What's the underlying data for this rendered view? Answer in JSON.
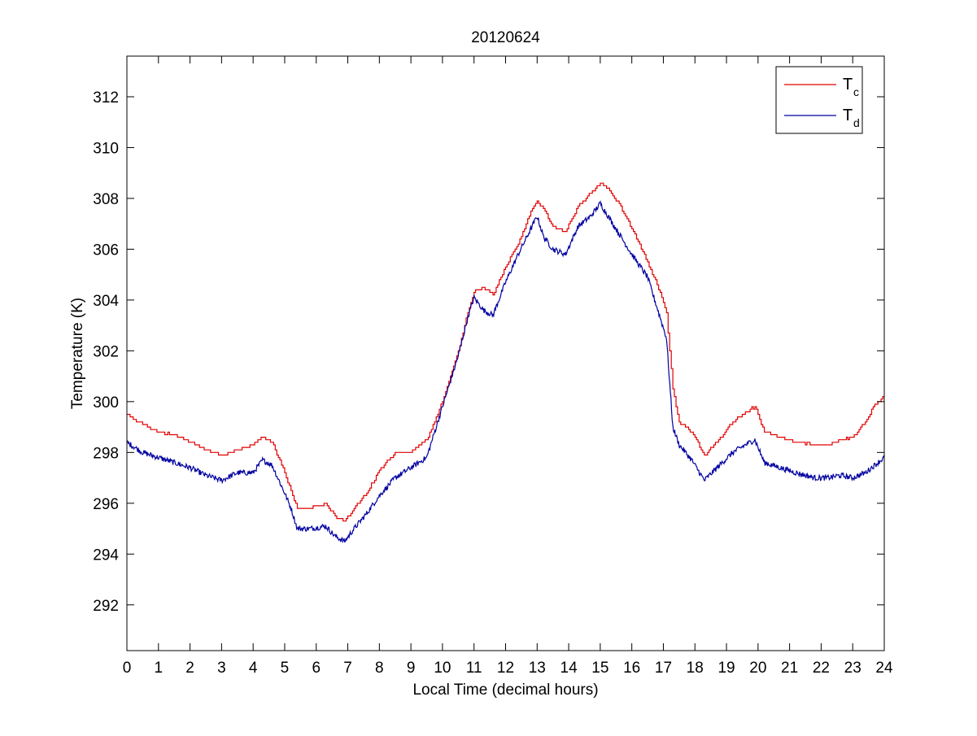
{
  "chart_data": {
    "type": "line",
    "title": "20120624",
    "xlabel": "Local Time (decimal hours)",
    "ylabel": "Temperature (K)",
    "xlim": [
      0,
      24
    ],
    "ylim": [
      290.2,
      313.6
    ],
    "x_ticks": [
      0,
      1,
      2,
      3,
      4,
      5,
      6,
      7,
      8,
      9,
      10,
      11,
      12,
      13,
      14,
      15,
      16,
      17,
      18,
      19,
      20,
      21,
      22,
      23,
      24
    ],
    "y_ticks": [
      292,
      294,
      296,
      298,
      300,
      302,
      304,
      306,
      308,
      310,
      312
    ],
    "grid": false,
    "legend_position": "top-right",
    "series": [
      {
        "name": "T",
        "subscript": "c",
        "color": "#e00000",
        "points": [
          [
            0,
            299.5
          ],
          [
            0.5,
            299.1
          ],
          [
            1,
            298.8
          ],
          [
            1.5,
            298.7
          ],
          [
            2,
            298.4
          ],
          [
            2.5,
            298.1
          ],
          [
            3,
            297.9
          ],
          [
            3.5,
            298.1
          ],
          [
            4,
            298.3
          ],
          [
            4.3,
            298.6
          ],
          [
            4.6,
            298.4
          ],
          [
            5.0,
            297.2
          ],
          [
            5.2,
            296.5
          ],
          [
            5.4,
            295.8
          ],
          [
            5.8,
            295.8
          ],
          [
            6.3,
            296.0
          ],
          [
            6.6,
            295.5
          ],
          [
            6.9,
            295.3
          ],
          [
            7.2,
            295.8
          ],
          [
            7.6,
            296.4
          ],
          [
            8,
            297.3
          ],
          [
            8.5,
            298.0
          ],
          [
            9,
            298.0
          ],
          [
            9.5,
            298.5
          ],
          [
            10,
            300.0
          ],
          [
            10.5,
            302.0
          ],
          [
            10.8,
            303.5
          ],
          [
            11,
            304.3
          ],
          [
            11.3,
            304.5
          ],
          [
            11.6,
            304.2
          ],
          [
            12,
            305.3
          ],
          [
            12.4,
            306.2
          ],
          [
            12.8,
            307.5
          ],
          [
            13.0,
            307.9
          ],
          [
            13.2,
            307.6
          ],
          [
            13.5,
            306.9
          ],
          [
            13.9,
            306.7
          ],
          [
            14.3,
            307.7
          ],
          [
            14.7,
            308.2
          ],
          [
            15.0,
            308.6
          ],
          [
            15.3,
            308.3
          ],
          [
            15.6,
            307.8
          ],
          [
            16.0,
            306.8
          ],
          [
            16.5,
            305.5
          ],
          [
            16.9,
            304.3
          ],
          [
            17.1,
            303.5
          ],
          [
            17.3,
            300.5
          ],
          [
            17.5,
            299.2
          ],
          [
            17.9,
            298.8
          ],
          [
            18.3,
            297.9
          ],
          [
            18.7,
            298.4
          ],
          [
            19.2,
            299.2
          ],
          [
            19.6,
            299.6
          ],
          [
            19.9,
            299.8
          ],
          [
            20.2,
            298.8
          ],
          [
            20.7,
            298.6
          ],
          [
            21.2,
            298.4
          ],
          [
            21.8,
            298.3
          ],
          [
            22.2,
            298.3
          ],
          [
            22.6,
            298.5
          ],
          [
            23.0,
            298.6
          ],
          [
            23.4,
            299.2
          ],
          [
            23.7,
            299.9
          ],
          [
            24,
            300.2
          ]
        ]
      },
      {
        "name": "T",
        "subscript": "d",
        "color": "#0000a0",
        "points": [
          [
            0,
            298.4
          ],
          [
            0.5,
            298.0
          ],
          [
            1,
            297.8
          ],
          [
            1.5,
            297.6
          ],
          [
            2,
            297.4
          ],
          [
            2.5,
            297.1
          ],
          [
            3,
            296.9
          ],
          [
            3.5,
            297.2
          ],
          [
            4,
            297.2
          ],
          [
            4.3,
            297.7
          ],
          [
            4.6,
            297.5
          ],
          [
            5.0,
            296.4
          ],
          [
            5.2,
            295.8
          ],
          [
            5.4,
            295.0
          ],
          [
            5.8,
            295.0
          ],
          [
            6.3,
            295.1
          ],
          [
            6.6,
            294.7
          ],
          [
            6.9,
            294.5
          ],
          [
            7.2,
            295.0
          ],
          [
            7.6,
            295.6
          ],
          [
            8,
            296.3
          ],
          [
            8.5,
            297.0
          ],
          [
            9,
            297.4
          ],
          [
            9.5,
            297.8
          ],
          [
            10,
            299.8
          ],
          [
            10.5,
            301.8
          ],
          [
            10.8,
            303.3
          ],
          [
            11,
            304.1
          ],
          [
            11.3,
            303.6
          ],
          [
            11.6,
            303.4
          ],
          [
            12,
            304.7
          ],
          [
            12.4,
            305.8
          ],
          [
            12.8,
            306.8
          ],
          [
            13.0,
            307.3
          ],
          [
            13.2,
            306.5
          ],
          [
            13.5,
            306.0
          ],
          [
            13.9,
            305.8
          ],
          [
            14.3,
            306.9
          ],
          [
            14.7,
            307.3
          ],
          [
            15.0,
            307.8
          ],
          [
            15.3,
            307.2
          ],
          [
            15.6,
            306.6
          ],
          [
            16.0,
            305.8
          ],
          [
            16.5,
            304.9
          ],
          [
            16.9,
            303.3
          ],
          [
            17.1,
            302.5
          ],
          [
            17.3,
            299.0
          ],
          [
            17.5,
            298.3
          ],
          [
            17.9,
            297.7
          ],
          [
            18.3,
            296.9
          ],
          [
            18.7,
            297.4
          ],
          [
            19.2,
            298.0
          ],
          [
            19.6,
            298.3
          ],
          [
            19.9,
            298.5
          ],
          [
            20.2,
            297.6
          ],
          [
            20.7,
            297.4
          ],
          [
            21.2,
            297.2
          ],
          [
            21.8,
            297.0
          ],
          [
            22.2,
            297.0
          ],
          [
            22.6,
            297.1
          ],
          [
            23.0,
            297.0
          ],
          [
            23.4,
            297.2
          ],
          [
            23.7,
            297.5
          ],
          [
            24,
            297.8
          ]
        ]
      }
    ]
  }
}
